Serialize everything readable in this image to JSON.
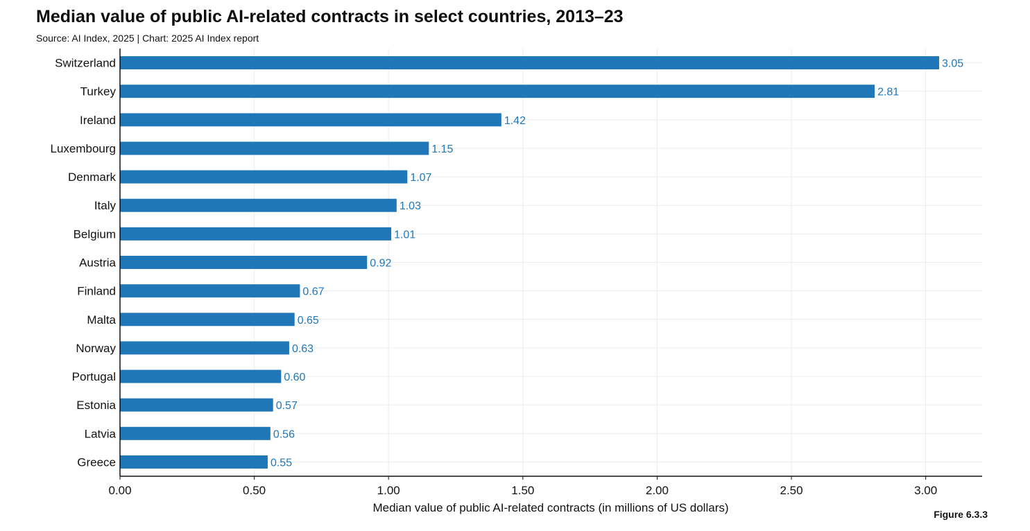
{
  "header": {
    "title": "Median value of public AI-related contracts in select countries, 2013–23",
    "subtitle": "Source: AI Index, 2025 | Chart: 2025 AI Index report",
    "figure_label": "Figure 6.3.3"
  },
  "chart_data": {
    "type": "bar",
    "orientation": "horizontal",
    "title": "Median value of public AI-related contracts in select countries, 2013–23",
    "subtitle": "Source: AI Index, 2025 | Chart: 2025 AI Index report",
    "xlabel": "Median value of public AI-related contracts (in millions of US dollars)",
    "ylabel": "",
    "categories": [
      "Switzerland",
      "Turkey",
      "Ireland",
      "Luxembourg",
      "Denmark",
      "Italy",
      "Belgium",
      "Austria",
      "Finland",
      "Malta",
      "Norway",
      "Portugal",
      "Estonia",
      "Latvia",
      "Greece"
    ],
    "values": [
      3.05,
      2.81,
      1.42,
      1.15,
      1.07,
      1.03,
      1.01,
      0.92,
      0.67,
      0.65,
      0.63,
      0.6,
      0.57,
      0.56,
      0.55
    ],
    "value_labels": [
      "3.05",
      "2.81",
      "1.42",
      "1.15",
      "1.07",
      "1.03",
      "1.01",
      "0.92",
      "0.67",
      "0.65",
      "0.63",
      "0.60",
      "0.57",
      "0.56",
      "0.55"
    ],
    "xlim": [
      0,
      3.2
    ],
    "xticks": [
      0,
      0.5,
      1.0,
      1.5,
      2.0,
      2.5,
      3.0
    ],
    "xtick_labels": [
      "0.00",
      "0.50",
      "1.00",
      "1.50",
      "2.00",
      "2.50",
      "3.00"
    ],
    "grid": true,
    "bar_color": "#1f77b8",
    "label_color": "#1f77b8",
    "grid_color": "#ececec",
    "axis_color": "#111111"
  }
}
